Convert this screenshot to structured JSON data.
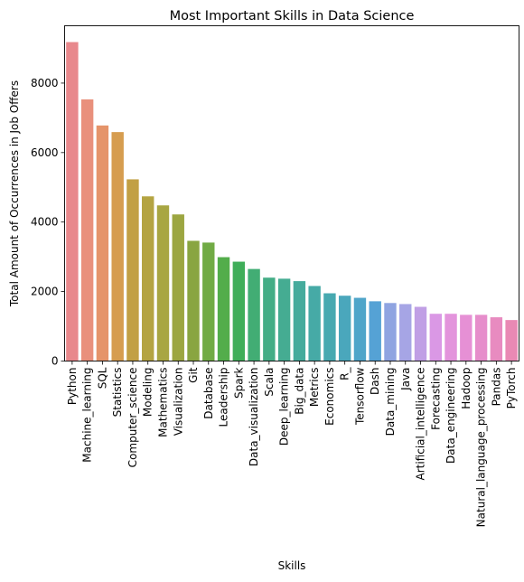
{
  "chart_data": {
    "type": "bar",
    "title": "Most Important Skills in Data Science",
    "xlabel": "Skills",
    "ylabel": "Total Amount of Occurrences in Job Offers",
    "ylim": [
      0,
      9650
    ],
    "yticks": [
      "0",
      "2000",
      "4000",
      "6000",
      "8000"
    ],
    "ytick_values": [
      0,
      2000,
      4000,
      6000,
      8000
    ],
    "grid": false,
    "legend": "none",
    "categories": [
      "Python",
      "Machine_learning",
      "SQL",
      "Statistics",
      "Computer_science",
      "Modeling",
      "Mathematics",
      "Visualization",
      "Git",
      "Database",
      "Leadership",
      "Spark",
      "Data_visualization",
      "Scala",
      "Deep_learning",
      "Big_data",
      "Metrics",
      "Economics",
      "R_",
      "Tensorflow",
      "Dash",
      "Data_mining",
      "Java",
      "Artificial_intelligence",
      "Forecasting",
      "Data_engineering",
      "Hadoop",
      "Natural_language_processing",
      "Pandas",
      "PyTorch"
    ],
    "values": [
      9180,
      7530,
      6780,
      6590,
      5230,
      4740,
      4480,
      4220,
      3460,
      3410,
      2990,
      2860,
      2650,
      2400,
      2370,
      2300,
      2160,
      1950,
      1880,
      1820,
      1720,
      1670,
      1640,
      1560,
      1360,
      1360,
      1330,
      1330,
      1260,
      1180
    ],
    "colors": [
      "#e8888c",
      "#e9907c",
      "#e5946a",
      "#d69d50",
      "#c2a044",
      "#b4a442",
      "#a8a642",
      "#9ca641",
      "#89a541",
      "#71ab45",
      "#53ad4b",
      "#3fae59",
      "#42ad74",
      "#44ad86",
      "#45ac92",
      "#45ab9c",
      "#46aaa6",
      "#47a9b0",
      "#4aa7bc",
      "#4fa5c9",
      "#55a2d5",
      "#8fa4e1",
      "#a6a5e5",
      "#c09fe5",
      "#da98e5",
      "#e394dc",
      "#e690d5",
      "#e68dcb",
      "#e88bc0",
      "#e989b4"
    ]
  }
}
